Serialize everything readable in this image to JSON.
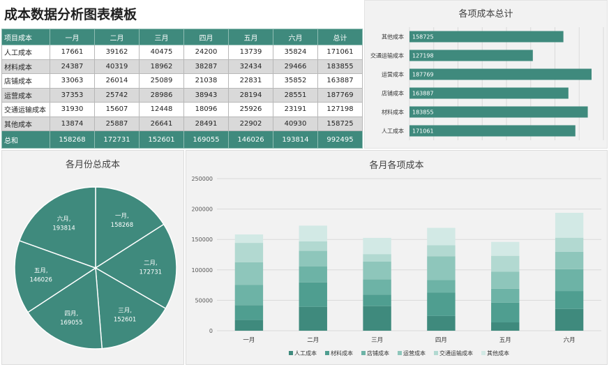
{
  "title": "成本数据分析图表模板",
  "table": {
    "header": [
      "项目成本",
      "一月",
      "二月",
      "三月",
      "四月",
      "五月",
      "六月",
      "总计"
    ],
    "rows": [
      [
        "人工成本",
        "17661",
        "39162",
        "40475",
        "24200",
        "13739",
        "35824",
        "171061"
      ],
      [
        "材料成本",
        "24387",
        "40319",
        "18962",
        "38287",
        "32434",
        "29466",
        "183855"
      ],
      [
        "店铺成本",
        "33063",
        "26014",
        "25089",
        "21038",
        "22831",
        "35852",
        "163887"
      ],
      [
        "运营成本",
        "37353",
        "25742",
        "28986",
        "38943",
        "28194",
        "28551",
        "187769"
      ],
      [
        "交通运输成本",
        "31930",
        "15607",
        "12448",
        "18096",
        "25926",
        "23191",
        "127198"
      ],
      [
        "其他成本",
        "13874",
        "25887",
        "26641",
        "28491",
        "22902",
        "40930",
        "158725"
      ]
    ],
    "footer": [
      "总和",
      "158268",
      "172731",
      "152601",
      "169055",
      "146026",
      "193814",
      "992495"
    ]
  },
  "colors": {
    "primary": "#3f8a7d",
    "series": [
      "#3f8a7d",
      "#4f9e90",
      "#6db3a6",
      "#8ec6bb",
      "#b2d9d1",
      "#d2e9e5"
    ]
  },
  "chart_data": [
    {
      "type": "bar",
      "title": "各项成本总计",
      "orientation": "horizontal",
      "categories": [
        "其他成本",
        "交通运输成本",
        "运营成本",
        "店铺成本",
        "材料成本",
        "人工成本"
      ],
      "values": [
        158725,
        127198,
        187769,
        163887,
        183855,
        171061
      ],
      "xlim": [
        0,
        200000
      ],
      "grid": true
    },
    {
      "type": "pie",
      "title": "各月份总成本",
      "labels": [
        "一月",
        "二月",
        "三月",
        "四月",
        "五月",
        "六月"
      ],
      "values": [
        158268,
        172731,
        152601,
        169055,
        146026,
        193814
      ]
    },
    {
      "type": "bar",
      "stacked": true,
      "title": "各月各项成本",
      "categories": [
        "一月",
        "二月",
        "三月",
        "四月",
        "五月",
        "六月"
      ],
      "ylim": [
        0,
        250000
      ],
      "yticks": [
        "0",
        "50000",
        "100000",
        "150000",
        "200000",
        "250000"
      ],
      "legend": "bottom",
      "grid": true,
      "series": [
        {
          "name": "人工成本",
          "values": [
            17661,
            39162,
            40475,
            24200,
            13739,
            35824
          ]
        },
        {
          "name": "材料成本",
          "values": [
            24387,
            40319,
            18962,
            38287,
            32434,
            29466
          ]
        },
        {
          "name": "店铺成本",
          "values": [
            33063,
            26014,
            25089,
            21038,
            22831,
            35852
          ]
        },
        {
          "name": "运营成本",
          "values": [
            37353,
            25742,
            28986,
            38943,
            28194,
            28551
          ]
        },
        {
          "name": "交通运输成本",
          "values": [
            31930,
            15607,
            12448,
            18096,
            25926,
            23191
          ]
        },
        {
          "name": "其他成本",
          "values": [
            13874,
            25887,
            26641,
            28491,
            22902,
            40930
          ]
        }
      ]
    }
  ]
}
